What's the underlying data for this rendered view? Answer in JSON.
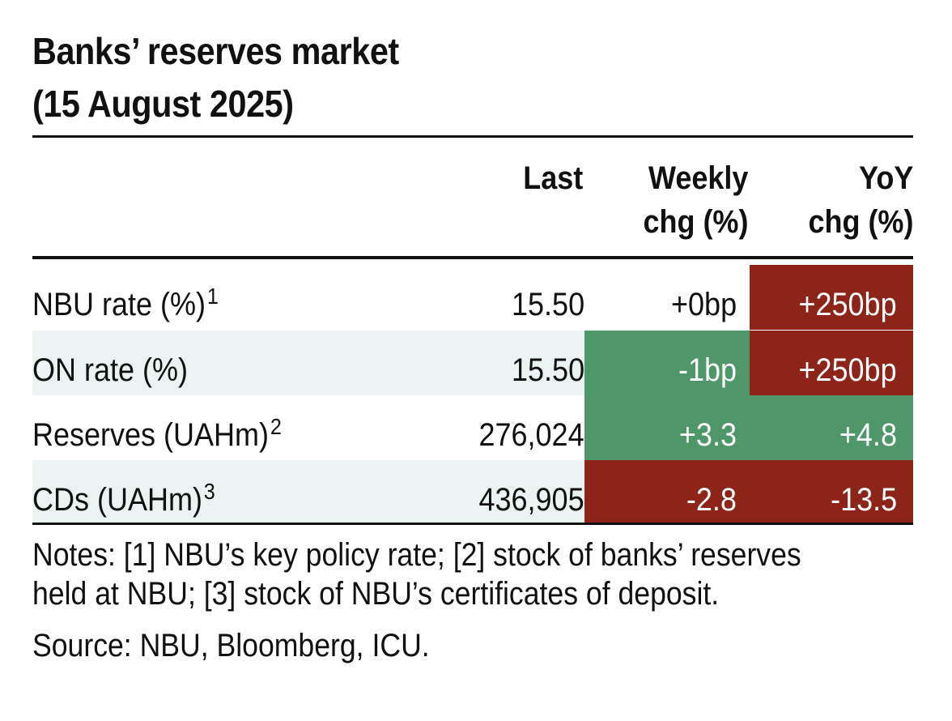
{
  "title_lines": [
    "Banks’ reserves market",
    "(15 August 2025)"
  ],
  "columns": {
    "last": "Last",
    "weekly": [
      "Weekly",
      "chg (%)"
    ],
    "yoy": [
      "YoY",
      "chg (%)"
    ]
  },
  "rows": [
    {
      "label": "NBU rate (%)",
      "sup": "1",
      "last": "15.50",
      "weekly": "+0bp",
      "yoy": "+250bp"
    },
    {
      "label": "ON rate (%)",
      "sup": "",
      "last": "15.50",
      "weekly": "-1bp",
      "yoy": "+250bp"
    },
    {
      "label": "Reserves (UAHm)",
      "sup": "2",
      "last": "276,024",
      "weekly": "+3.3",
      "yoy": "+4.8"
    },
    {
      "label": "CDs (UAHm)",
      "sup": "3",
      "last": "436,905",
      "weekly": "-2.8",
      "yoy": "-13.5"
    }
  ],
  "notes_lines": [
    "Notes: [1] NBU’s key policy rate; [2] stock of banks’ reserves",
    "held at NBU; [3] stock of NBU’s certificates of deposit."
  ],
  "source": "Source: NBU, Bloomberg, ICU.",
  "colors": {
    "positive": "#4f9669",
    "negative": "#8c2419",
    "stripe": "#eaf3f2"
  },
  "chart_data": {
    "type": "table",
    "title": "Banks’ reserves market (15 August 2025)",
    "columns": [
      "Last",
      "Weekly chg (%)",
      "YoY chg (%)"
    ],
    "rows": [
      {
        "label": "NBU rate (%)",
        "values": [
          "15.50",
          "+0bp",
          "+250bp"
        ],
        "highlight": [
          "none",
          "none",
          "negative"
        ]
      },
      {
        "label": "ON rate (%)",
        "values": [
          "15.50",
          "-1bp",
          "+250bp"
        ],
        "highlight": [
          "none",
          "positive",
          "negative"
        ]
      },
      {
        "label": "Reserves (UAHm)",
        "values": [
          "276,024",
          "+3.3",
          "+4.8"
        ],
        "highlight": [
          "none",
          "positive",
          "positive"
        ]
      },
      {
        "label": "CDs (UAHm)",
        "values": [
          "436,905",
          "-2.8",
          "-13.5"
        ],
        "highlight": [
          "none",
          "negative",
          "negative"
        ]
      }
    ]
  }
}
